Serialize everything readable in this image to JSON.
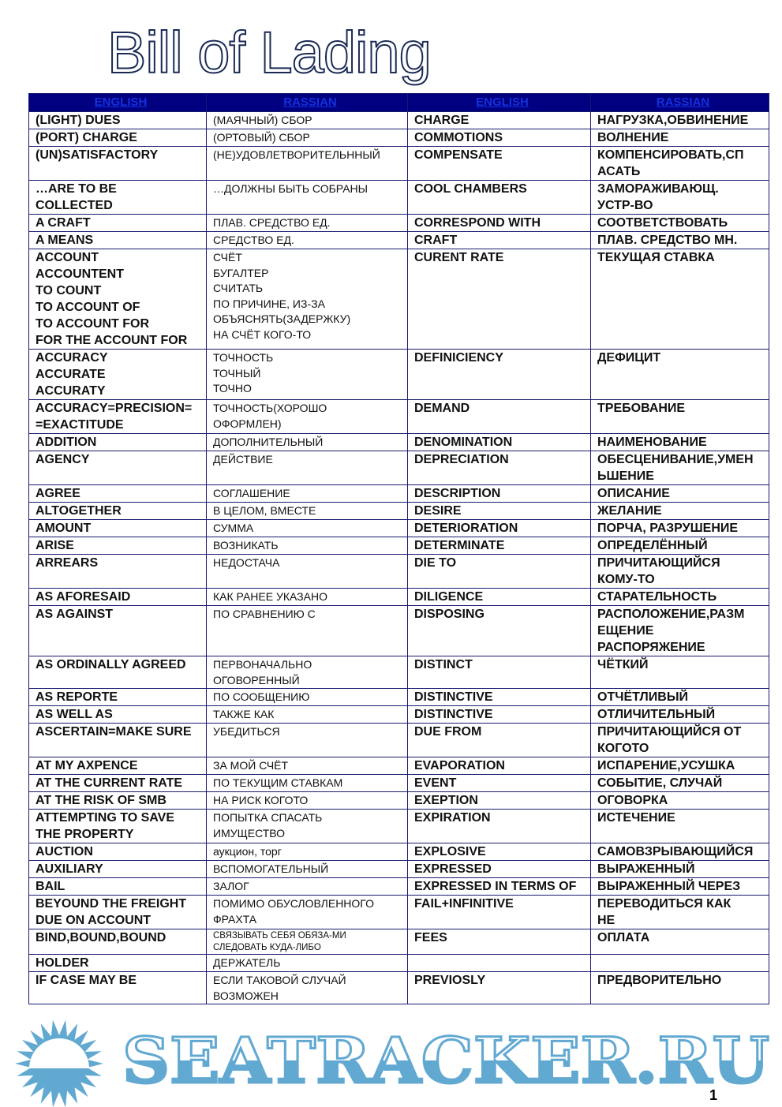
{
  "title": "Bill of Lading",
  "headers": [
    "ENGLISH",
    "RASSIAN",
    "ENGLISH",
    "RASSIAN"
  ],
  "rows": [
    [
      "(LIGHT) DUES",
      "(МАЯЧНЫЙ) СБОР",
      "CHARGE",
      "НАГРУЗКА,ОБВИНЕНИЕ"
    ],
    [
      "(PORT) CHARGE",
      "(ОРТОВЫЙ) СБОР",
      "COMMOTIONS",
      "ВОЛНЕНИЕ"
    ],
    [
      "(UN)SATISFACTORY",
      "(НЕ)УДОВЛЕТВОРИТЕЛЬННЫЙ",
      "COMPENSATE",
      "КОМПЕНСИРОВАТЬ,СП\nАСАТЬ"
    ],
    [
      "…ARE TO BE\nCOLLECTED",
      "…ДОЛЖНЫ БЫТЬ СОБРАНЫ",
      "COOL CHAMBERS",
      "ЗАМОРАЖИВАЮЩ.\nУСТР-ВО"
    ],
    [
      " A CRAFT",
      "ПЛАВ. СРЕДСТВО ЕД.",
      "CORRESPOND WITH",
      "СООТВЕТСТВОВАТЬ"
    ],
    [
      "A MEANS",
      "СРЕДСТВО ЕД.",
      "CRAFT",
      "ПЛАВ. СРЕДСТВО МН."
    ],
    [
      "ACCOUNT\nACCOUNTENT\nTO COUNT\nTO ACCOUNT OF\nTO ACCOUNT FOR\nFOR THE ACCOUNT FOR",
      "СЧЁТ\nБУГАЛТЕР\nСЧИТАТЬ\nПО ПРИЧИНЕ, ИЗ-ЗА\nОБЪЯСНЯТЬ(ЗАДЕРЖКУ)\nНА СЧЁТ КОГО-ТО",
      "CURENT RATE",
      "ТЕКУЩАЯ СТАВКА"
    ],
    [
      "ACCURACY\nACCURATE\nACCURATY",
      "ТОЧНОСТЬ\nТОЧНЫЙ\nТОЧНО",
      "DEFINICIENCY",
      "ДЕФИЦИТ"
    ],
    [
      "ACCURACY=PRECISION=\n=EXACTITUDE",
      "ТОЧНОСТЬ(ХОРОШО\nОФОРМЛЕН)",
      "DEMAND",
      "ТРЕБОВАНИЕ"
    ],
    [
      "ADDITION",
      "ДОПОЛНИТЕЛЬНЫЙ",
      "DENOMINATION",
      "НАИМЕНОВАНИЕ"
    ],
    [
      "AGENCY",
      "ДЕЙСТВИЕ",
      "DEPRECIATION",
      "ОБЕСЦЕНИВАНИЕ,УМЕН\nЬШЕНИЕ"
    ],
    [
      "AGREE",
      "СОГЛАШЕНИЕ",
      "DESCRIPTION",
      "ОПИСАНИЕ"
    ],
    [
      "ALTOGETHER",
      "В ЦЕЛОМ, ВМЕСТЕ",
      "DESIRE",
      "ЖЕЛАНИЕ"
    ],
    [
      "AMOUNT",
      "СУММА",
      "DETERIORATION",
      "ПОРЧА, РАЗРУШЕНИЕ"
    ],
    [
      "ARISE",
      "ВОЗНИКАТЬ",
      "DETERMINATE",
      "ОПРЕДЕЛЁННЫЙ"
    ],
    [
      "ARREARS",
      "НЕДОСТАЧА",
      "DIE TO",
      "ПРИЧИТАЮЩИЙСЯ\nКОМУ-ТО"
    ],
    [
      "AS AFORESAID",
      "КАК РАНЕЕ УКАЗАНО",
      "DILIGENCE",
      "СТАРАТЕЛЬНОСТЬ"
    ],
    [
      "AS AGAINST",
      "ПО СРАВНЕНИЮ С",
      "DISPOSING",
      "РАСПОЛОЖЕНИЕ,РАЗМ\nЕЩЕНИЕ\nРАСПОРЯЖЕНИЕ"
    ],
    [
      "AS ORDINALLY AGREED",
      "ПЕРВОНАЧАЛЬНО\nОГОВОРЕННЫЙ",
      "DISTINCT",
      "ЧЁТКИЙ"
    ],
    [
      "AS REPORTE",
      "ПО СООБЩЕНИЮ",
      "DISTINCTIVE",
      "ОТЧЁТЛИВЫЙ"
    ],
    [
      "AS WELL AS",
      "ТАКЖЕ КАК",
      "DISTINCTIVE",
      "ОТЛИЧИТЕЛЬНЫЙ"
    ],
    [
      "ASCERTAIN=MAKE SURE",
      "УБЕДИТЬСЯ",
      "DUE FROM",
      "ПРИЧИТАЮЩИЙСЯ ОТ\nКОГОТО"
    ],
    [
      "AT MY AXPENCE",
      "ЗА МОЙ СЧЁТ",
      "EVAPORATION",
      "ИСПАРЕНИЕ,УСУШКА"
    ],
    [
      "AT THE CURRENT RATE",
      "ПО ТЕКУЩИМ СТАВКАМ",
      "EVENT",
      "СОБЫТИЕ, СЛУЧАЙ"
    ],
    [
      "AT THE RISK OF SMB",
      "НА РИСК КОГОТО",
      "EXEPTION",
      "ОГОВОРКА"
    ],
    [
      "ATTEMPTING TO SAVE\nTHE PROPERTY",
      "ПОПЫТКА СПАСАТЬ\nИМУЩЕСТВО",
      "EXPIRATION",
      "ИСТЕЧЕНИЕ"
    ],
    [
      "AUCTION",
      "аукцион, торг",
      "EXPLOSIVE",
      "САМОВЗРЫВАЮЩИЙСЯ"
    ],
    [
      "AUXILIARY",
      "ВСПОМОГАТЕЛЬНЫЙ",
      "EXPRESSED",
      "ВЫРАЖЕННЫЙ"
    ],
    [
      "BAIL",
      "ЗАЛОГ",
      "EXPRESSED IN TERMS OF",
      "ВЫРАЖЕННЫЙ ЧЕРЕЗ"
    ],
    [
      "BEYOUND THE FREIGHT\nDUE ON ACCOUNT",
      "ПОМИМО ОБУСЛОВЛЕННОГО\nФРАХТА",
      "FAIL+INFINITIVE",
      "ПЕРЕВОДИТЬСЯ КАК\nНЕ"
    ],
    [
      "BIND,BOUND,BOUND",
      "СВЯЗЫВАТЬ СЕБЯ ОБЯЗА-МИ\nСЛЕДОВАТЬ КУДА-ЛИБО",
      "FEES",
      "ОПЛАТА"
    ],
    [
      "HOLDER",
      "ДЕРЖАТЕЛЬ",
      "",
      ""
    ],
    [
      "IF CASE MAY BE",
      "ЕСЛИ ТАКОВОЙ СЛУЧАЙ\nВОЗМОЖЕН",
      "PREVIOSLY",
      "ПРЕДВОРИТЕЛЬНО"
    ]
  ],
  "watermark": {
    "text": "SEATRACKER.RU",
    "icon": "sun-icon",
    "color": "#62a9d2"
  },
  "page_number": "1",
  "colors": {
    "header_bg": "#000080",
    "header_text": "#1530e0",
    "border": "#1a1a6e"
  }
}
